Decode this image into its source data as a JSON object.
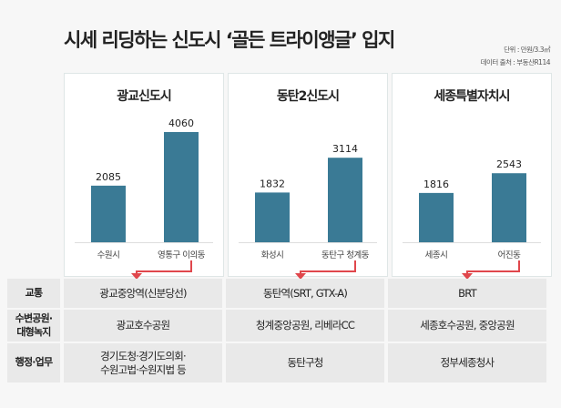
{
  "title": "시세 리딩하는 신도시 ‘골든 트라이앵글’ 입지",
  "unit_note": "단위 : 만원/3.3㎡",
  "source_note": "데이터 출처 : 부동산R114",
  "colors": {
    "bar": "#3a7a95",
    "arrow": "#e0474c"
  },
  "chart_data": [
    {
      "type": "bar",
      "title": "광교신도시",
      "categories": [
        "수원시",
        "영통구 이의동"
      ],
      "values": [
        2085,
        4060
      ],
      "ylim": [
        0,
        4060
      ]
    },
    {
      "type": "bar",
      "title": "동탄2신도시",
      "categories": [
        "화성시",
        "동탄구 청계동"
      ],
      "values": [
        1832,
        3114
      ],
      "ylim": [
        0,
        4060
      ]
    },
    {
      "type": "bar",
      "title": "세종특별자치시",
      "categories": [
        "세종시",
        "어진동"
      ],
      "values": [
        1816,
        2543
      ],
      "ylim": [
        0,
        4060
      ]
    }
  ],
  "table": {
    "rows": [
      {
        "label": "교통",
        "cells": [
          "광교중앙역(신분당선)",
          "동탄역(SRT, GTX-A)",
          "BRT"
        ]
      },
      {
        "label": "수변공원·\n대형녹지",
        "cells": [
          "광교호수공원",
          "청계중앙공원, 리베라CC",
          "세종호수공원, 중앙공원"
        ]
      },
      {
        "label": "행정·업무",
        "cells": [
          "경기도청·경기도의회·\n수원고법·수원지법 등",
          "동탄구청",
          "정부세종청사"
        ]
      }
    ]
  }
}
